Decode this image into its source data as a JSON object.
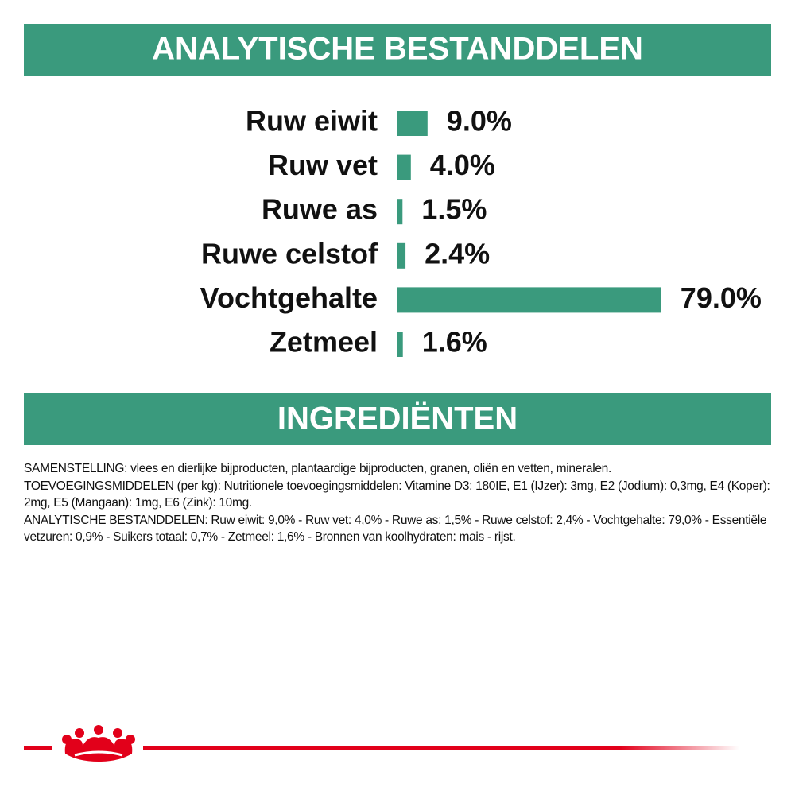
{
  "chart_data": {
    "type": "hbar",
    "title": "ANALYTISCHE BESTANDDELEN",
    "categories": [
      "Ruw eiwit",
      "Ruw vet",
      "Ruwe as",
      "Ruwe celstof",
      "Vochtgehalte",
      "Zetmeel"
    ],
    "values": [
      9.0,
      4.0,
      1.5,
      2.4,
      79.0,
      1.6
    ],
    "value_labels": [
      "9.0%",
      "4.0%",
      "1.5%",
      "2.4%",
      "79.0%",
      "1.6%"
    ],
    "color": "#3a9a7d"
  },
  "ingredients": {
    "title": "INGREDIËNTEN",
    "paragraphs": [
      "SAMENSTELLING: vlees en dierlijke bijproducten, plantaardige bijproducten, granen, oliën en vetten, mineralen.",
      "TOEVOEGINGSMIDDELEN (per kg): Nutritionele toevoegingsmiddelen: Vitamine D3: 180IE, E1 (IJzer): 3mg, E2 (Jodium): 0,3mg, E4 (Koper): 2mg, E5 (Mangaan): 1mg, E6 (Zink): 10mg.",
      "ANALYTISCHE BESTANDDELEN: Ruw eiwit: 9,0% - Ruw vet: 4,0% - Ruwe as: 1,5% - Ruwe celstof: 2,4% - Vochtgehalte: 79,0% - Essentiële vetzuren: 0,9% - Suikers totaal: 0,7% - Zetmeel: 1,6% - Bronnen van koolhydraten: mais - rijst."
    ]
  }
}
